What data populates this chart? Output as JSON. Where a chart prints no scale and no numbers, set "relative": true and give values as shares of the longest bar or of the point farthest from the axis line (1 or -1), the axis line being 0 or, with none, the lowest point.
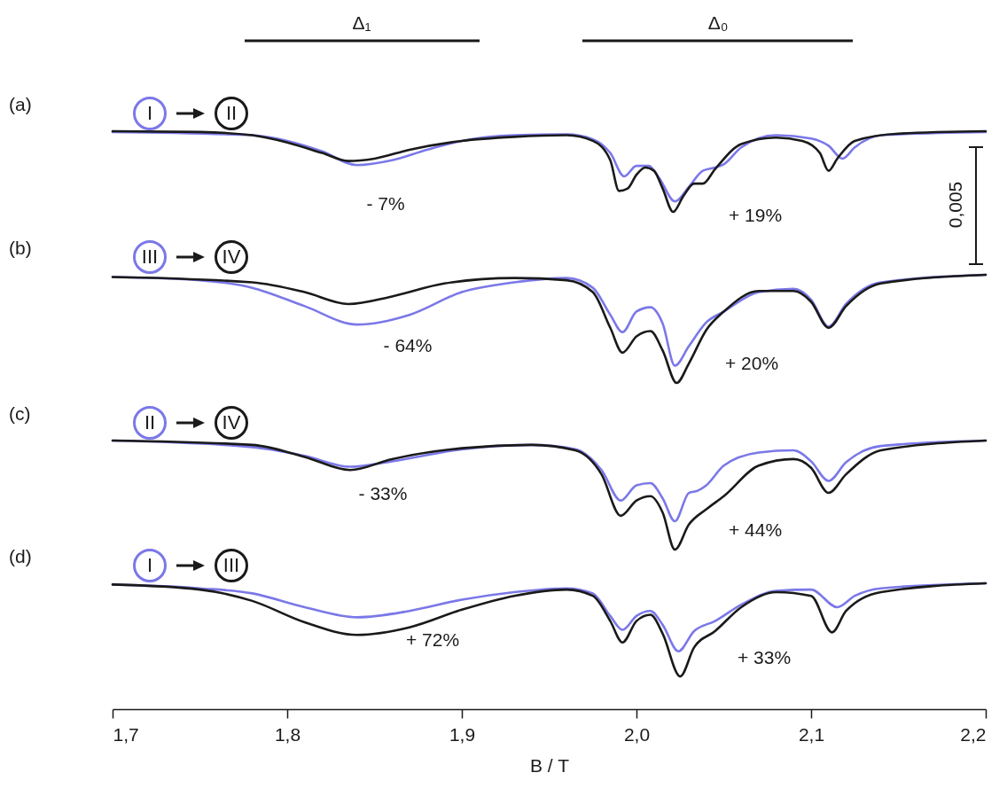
{
  "chart_data": [
    {
      "type": "line",
      "title": "(a)",
      "relative": true,
      "legend": "top left",
      "xlim": [
        1.7,
        2.2
      ],
      "tick_labels": false,
      "annotations": [
        "Δ₁",
        "Δ₀",
        "- 7%",
        "+ 19%",
        "0,005"
      ],
      "series": [
        {
          "name": "I",
          "color": "#7b78e8",
          "x": [
            1.7,
            1.78,
            1.8,
            1.82,
            1.84,
            1.86,
            1.88,
            1.9,
            1.93,
            1.96,
            1.975,
            1.985,
            1.993,
            2.0,
            2.007,
            2.013,
            2.022,
            2.03,
            2.038,
            2.045,
            2.05,
            2.06,
            2.08,
            2.1,
            2.11,
            2.118,
            2.125,
            2.14,
            2.2
          ],
          "values": [
            0.99,
            0.95,
            0.88,
            0.75,
            0.58,
            0.64,
            0.77,
            0.88,
            0.95,
            0.96,
            0.9,
            0.73,
            0.44,
            0.57,
            0.57,
            0.42,
            0.13,
            0.31,
            0.51,
            0.55,
            0.59,
            0.8,
            0.95,
            0.91,
            0.82,
            0.66,
            0.8,
            0.95,
            0.99
          ]
        },
        {
          "name": "II",
          "color": "#1a1a1a",
          "x": [
            1.7,
            1.75,
            1.78,
            1.8,
            1.82,
            1.835,
            1.85,
            1.87,
            1.9,
            1.93,
            1.96,
            1.975,
            1.985,
            1.99,
            1.995,
            2.0,
            2.005,
            2.01,
            2.015,
            2.021,
            2.027,
            2.033,
            2.038,
            2.045,
            2.06,
            2.08,
            2.095,
            2.105,
            2.11,
            2.115,
            2.125,
            2.15,
            2.2
          ],
          "values": [
            1.0,
            0.99,
            0.95,
            0.86,
            0.73,
            0.63,
            0.66,
            0.77,
            0.88,
            0.93,
            0.95,
            0.88,
            0.64,
            0.26,
            0.29,
            0.46,
            0.55,
            0.51,
            0.29,
            0,
            0.2,
            0.35,
            0.35,
            0.53,
            0.84,
            0.92,
            0.88,
            0.73,
            0.51,
            0.66,
            0.88,
            0.97,
            1.0
          ]
        }
      ]
    },
    {
      "type": "line",
      "title": "(b)",
      "relative": true,
      "legend": "top left",
      "xlim": [
        1.7,
        2.2
      ],
      "tick_labels": false,
      "annotations": [
        "- 64%",
        "+ 20%"
      ],
      "series": [
        {
          "name": "III",
          "color": "#7b78e8",
          "x": [
            1.7,
            1.75,
            1.78,
            1.81,
            1.84,
            1.87,
            1.9,
            1.93,
            1.96,
            1.975,
            1.985,
            1.992,
            2.0,
            2.008,
            2.015,
            2.022,
            2.03,
            2.04,
            2.05,
            2.07,
            2.09,
            2.1,
            2.11,
            2.12,
            2.14,
            2.2
          ],
          "values": [
            0.98,
            0.95,
            0.88,
            0.71,
            0.54,
            0.63,
            0.84,
            0.93,
            0.97,
            0.88,
            0.63,
            0.47,
            0.66,
            0.7,
            0.55,
            0.16,
            0.34,
            0.56,
            0.66,
            0.84,
            0.87,
            0.77,
            0.52,
            0.73,
            0.93,
            1.0
          ]
        },
        {
          "name": "IV",
          "color": "#1a1a1a",
          "x": [
            1.7,
            1.78,
            1.81,
            1.835,
            1.86,
            1.89,
            1.93,
            1.96,
            1.975,
            1.985,
            1.992,
            2.0,
            2.008,
            2.015,
            2.023,
            2.03,
            2.04,
            2.05,
            2.07,
            2.09,
            2.1,
            2.11,
            2.12,
            2.14,
            2.2
          ],
          "values": [
            0.98,
            0.93,
            0.84,
            0.73,
            0.8,
            0.92,
            0.97,
            0.95,
            0.84,
            0.51,
            0.28,
            0.43,
            0.48,
            0.3,
            0,
            0.18,
            0.49,
            0.66,
            0.85,
            0.85,
            0.75,
            0.51,
            0.71,
            0.92,
            1.0
          ]
        }
      ]
    },
    {
      "type": "line",
      "title": "(c)",
      "relative": true,
      "legend": "top left",
      "xlim": [
        1.7,
        2.2
      ],
      "tick_labels": false,
      "annotations": [
        "- 33%",
        "+ 44%"
      ],
      "series": [
        {
          "name": "II",
          "color": "#7b78e8",
          "x": [
            1.7,
            1.78,
            1.81,
            1.836,
            1.86,
            1.9,
            1.94,
            1.965,
            1.98,
            1.991,
            2.0,
            2.008,
            2.015,
            2.022,
            2.03,
            2.035,
            2.04,
            2.05,
            2.07,
            2.09,
            2.1,
            2.11,
            2.12,
            2.14,
            2.2
          ],
          "values": [
            1.0,
            0.94,
            0.86,
            0.76,
            0.81,
            0.92,
            0.96,
            0.92,
            0.73,
            0.45,
            0.59,
            0.61,
            0.47,
            0.26,
            0.52,
            0.54,
            0.59,
            0.77,
            0.89,
            0.91,
            0.81,
            0.63,
            0.8,
            0.95,
            1.0
          ]
        },
        {
          "name": "IV",
          "color": "#1a1a1a",
          "x": [
            1.7,
            1.78,
            1.81,
            1.836,
            1.86,
            1.9,
            1.94,
            1.965,
            1.98,
            1.991,
            2.0,
            2.008,
            2.015,
            2.022,
            2.03,
            2.04,
            2.05,
            2.07,
            2.09,
            2.1,
            2.11,
            2.12,
            2.14,
            2.2
          ],
          "values": [
            1.0,
            0.96,
            0.85,
            0.73,
            0.83,
            0.93,
            0.96,
            0.91,
            0.69,
            0.31,
            0.45,
            0.49,
            0.34,
            0,
            0.23,
            0.37,
            0.49,
            0.77,
            0.83,
            0.75,
            0.52,
            0.69,
            0.91,
            1.0
          ]
        }
      ]
    },
    {
      "type": "line",
      "title": "(d)",
      "relative": true,
      "legend": "top left",
      "xlim": [
        1.7,
        2.2
      ],
      "xlabel": "B / T",
      "xticks": [
        {
          "value": 1.7,
          "label": "1,7"
        },
        {
          "value": 1.8,
          "label": "1,8"
        },
        {
          "value": 1.9,
          "label": "1,9"
        },
        {
          "value": 2.0,
          "label": "2,0"
        },
        {
          "value": 2.1,
          "label": "2,1"
        },
        {
          "value": 2.2,
          "label": "2,2"
        }
      ],
      "annotations": [
        "+ 72%",
        "+ 33%"
      ],
      "series": [
        {
          "name": "I",
          "color": "#7b78e8",
          "x": [
            1.7,
            1.75,
            1.78,
            1.81,
            1.84,
            1.87,
            1.9,
            1.93,
            1.96,
            1.975,
            1.985,
            1.992,
            2.0,
            2.008,
            2.015,
            2.024,
            2.033,
            2.045,
            2.06,
            2.08,
            2.1,
            2.115,
            2.125,
            2.14,
            2.2
          ],
          "values": [
            0.99,
            0.96,
            0.92,
            0.81,
            0.73,
            0.78,
            0.87,
            0.93,
            0.96,
            0.92,
            0.74,
            0.63,
            0.74,
            0.78,
            0.67,
            0.46,
            0.62,
            0.7,
            0.83,
            0.94,
            0.95,
            0.81,
            0.9,
            0.96,
            1.0
          ]
        },
        {
          "name": "III",
          "color": "#1a1a1a",
          "x": [
            1.7,
            1.75,
            1.78,
            1.81,
            1.84,
            1.87,
            1.9,
            1.93,
            1.96,
            1.975,
            1.985,
            1.992,
            2.0,
            2.008,
            2.015,
            2.025,
            2.033,
            2.045,
            2.06,
            2.08,
            2.1,
            2.112,
            2.12,
            2.14,
            2.2
          ],
          "values": [
            0.99,
            0.95,
            0.86,
            0.69,
            0.59,
            0.65,
            0.79,
            0.9,
            0.95,
            0.9,
            0.7,
            0.53,
            0.7,
            0.75,
            0.6,
            0.26,
            0.49,
            0.62,
            0.81,
            0.93,
            0.9,
            0.61,
            0.78,
            0.93,
            1.0
          ]
        }
      ]
    }
  ]
}
